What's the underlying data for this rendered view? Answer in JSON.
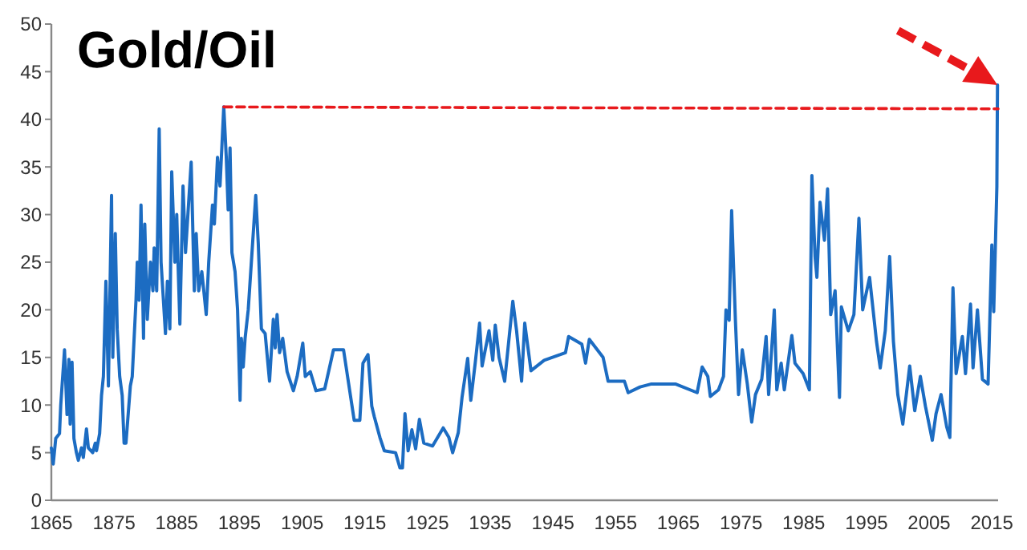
{
  "chart_data": {
    "type": "line",
    "title": "Gold/Oil",
    "xlim": [
      1865,
      2016
    ],
    "ylim": [
      0,
      50
    ],
    "xticks": [
      1865,
      1875,
      1885,
      1895,
      1905,
      1915,
      1925,
      1935,
      1945,
      1955,
      1965,
      1975,
      1985,
      1995,
      2005,
      2015
    ],
    "yticks": [
      0,
      5,
      10,
      15,
      20,
      25,
      30,
      35,
      40,
      45,
      50
    ],
    "grid": false,
    "marker": "none",
    "series": [
      {
        "color": "#1c6cc2",
        "line_style": "solid",
        "x": [
          1865,
          1865.3,
          1865.7,
          1866.3,
          1866.5,
          1867.1,
          1867.5,
          1867.8,
          1868,
          1868.3,
          1868.6,
          1869,
          1869.3,
          1869.8,
          1870.1,
          1870.6,
          1870.9,
          1871.6,
          1872,
          1872.2,
          1872.7,
          1873,
          1873.3,
          1873.7,
          1874.1,
          1874.6,
          1874.8,
          1875.2,
          1875.5,
          1875.9,
          1876.3,
          1876.6,
          1876.9,
          1877.6,
          1877.9,
          1878.5,
          1878.7,
          1879,
          1879.3,
          1879.7,
          1879.9,
          1880.3,
          1880.8,
          1881.2,
          1881.4,
          1881.8,
          1882.2,
          1882.5,
          1883.2,
          1883.5,
          1883.9,
          1884.2,
          1884.7,
          1885,
          1885.2,
          1885.5,
          1886,
          1886.4,
          1887.3,
          1887.8,
          1888.1,
          1888.5,
          1889,
          1889.7,
          1890.1,
          1890.7,
          1891,
          1891.5,
          1891.9,
          1892.5,
          1892.9,
          1893.2,
          1893.5,
          1893.8,
          1894.3,
          1894.7,
          1895.1,
          1895.3,
          1895.6,
          1895.9,
          1896.4,
          1896.9,
          1897.6,
          1898,
          1898.5,
          1899.1,
          1899.8,
          1900.4,
          1900.7,
          1901,
          1901.4,
          1901.9,
          1902.6,
          1903.6,
          1904.2,
          1905.1,
          1905.5,
          1906.3,
          1907.2,
          1908.6,
          1910,
          1911.6,
          1912.7,
          1913.3,
          1914.2,
          1914.7,
          1915.5,
          1916.1,
          1916.5,
          1917.4,
          1918.1,
          1919.9,
          1920.6,
          1921,
          1921.4,
          1921.9,
          1922.5,
          1923.1,
          1923.7,
          1924.4,
          1925.8,
          1927.5,
          1928.4,
          1929,
          1929.9,
          1930.5,
          1931.4,
          1931.9,
          1932.6,
          1933.3,
          1933.7,
          1934.8,
          1935.4,
          1935.8,
          1936.4,
          1937.3,
          1938.6,
          1939.2,
          1940,
          1940.5,
          1941.5,
          1943.6,
          1946.2,
          1947,
          1947.5,
          1949.6,
          1950.2,
          1950.8,
          1953,
          1953.8,
          1956.4,
          1957,
          1958.9,
          1960.6,
          1964.6,
          1968,
          1968.8,
          1969.7,
          1970.1,
          1971.4,
          1972.2,
          1972.6,
          1973.1,
          1973.5,
          1974.1,
          1974.6,
          1975.2,
          1976,
          1976.7,
          1977.3,
          1978.3,
          1979,
          1979.4,
          1980.3,
          1980.7,
          1981.4,
          1981.9,
          1983.1,
          1983.6,
          1984.9,
          1985.9,
          1986.3,
          1986.8,
          1987.1,
          1987.6,
          1988.3,
          1988.8,
          1989.3,
          1990,
          1990.7,
          1991,
          1992.1,
          1993,
          1993.8,
          1994.4,
          1995.5,
          1996.6,
          1997.2,
          1998,
          1998.7,
          1999.3,
          2000,
          2000.8,
          2001.9,
          2002.7,
          2003.6,
          2004.4,
          2005.5,
          2006.1,
          2006.9,
          2007.8,
          2008.3,
          2008.8,
          2009.3,
          2010.3,
          2010.8,
          2011.6,
          2012,
          2012.7,
          2013.5,
          2014.4,
          2015,
          2015.3,
          2015.8,
          2015.9
        ],
        "values": [
          5.5,
          3.8,
          6.5,
          7,
          10,
          15.8,
          9,
          14.8,
          8,
          14.5,
          6.5,
          5,
          4.2,
          5.5,
          4.5,
          7.5,
          5.5,
          5,
          6,
          5.2,
          7,
          11,
          13,
          23,
          12,
          32,
          15,
          28,
          18,
          13,
          11,
          6,
          6,
          12,
          13,
          21,
          25,
          21,
          31,
          17,
          29,
          19,
          25,
          22,
          26.5,
          22,
          39,
          25,
          17.5,
          23,
          18,
          34.5,
          25,
          30,
          25,
          18.5,
          33,
          26,
          35.5,
          22,
          28,
          22,
          24,
          19.5,
          25,
          31,
          29,
          36,
          33,
          41.3,
          36,
          30.5,
          37,
          26,
          24,
          20,
          10.5,
          17,
          14,
          17,
          20,
          25,
          32,
          27,
          18,
          17.5,
          12.5,
          19,
          16,
          19.5,
          15.5,
          17,
          13.5,
          11.5,
          13,
          16.5,
          13,
          13.5,
          11.5,
          11.7,
          15.8,
          15.8,
          11,
          8.4,
          8.4,
          14.4,
          15.3,
          9.9,
          8.8,
          6.6,
          5.2,
          5,
          3.4,
          3.4,
          9.1,
          5.2,
          7.4,
          5.4,
          8.5,
          6,
          5.7,
          7.6,
          6.6,
          5,
          7.1,
          10.8,
          14.9,
          10.5,
          14.4,
          18.6,
          14.1,
          17.8,
          14.7,
          18.4,
          15,
          12.5,
          20.9,
          17.8,
          12.5,
          18.6,
          13.6,
          14.7,
          15.3,
          15.5,
          17.2,
          16.4,
          14.4,
          16.9,
          15,
          12.5,
          12.5,
          11.3,
          11.9,
          12.2,
          12.2,
          11.3,
          14,
          13,
          10.9,
          11.6,
          13,
          20,
          18.9,
          30.4,
          18.9,
          11.1,
          15.8,
          12.2,
          8.2,
          11.1,
          12.7,
          17.2,
          11.1,
          20,
          11.6,
          14.4,
          11.6,
          17.3,
          14.4,
          13.3,
          11.6,
          34.1,
          25.6,
          23.4,
          31.3,
          27.3,
          32.7,
          19.5,
          22,
          10.8,
          20.3,
          17.8,
          19.5,
          29.6,
          20,
          23.4,
          16.7,
          13.9,
          17.8,
          25.6,
          16.7,
          11.1,
          8,
          14.1,
          9.4,
          13,
          9.9,
          6.3,
          9.1,
          11.1,
          7.7,
          6.6,
          22.3,
          13.3,
          17.2,
          13.3,
          20.6,
          13.9,
          20,
          12.7,
          12.2,
          26.8,
          19.8,
          32.9,
          43.6
        ]
      },
      {
        "color": "#e8191c",
        "line_style": "dashed",
        "x": [
          1892.5,
          2016
        ],
        "values": [
          41.3,
          41.1
        ]
      }
    ]
  }
}
